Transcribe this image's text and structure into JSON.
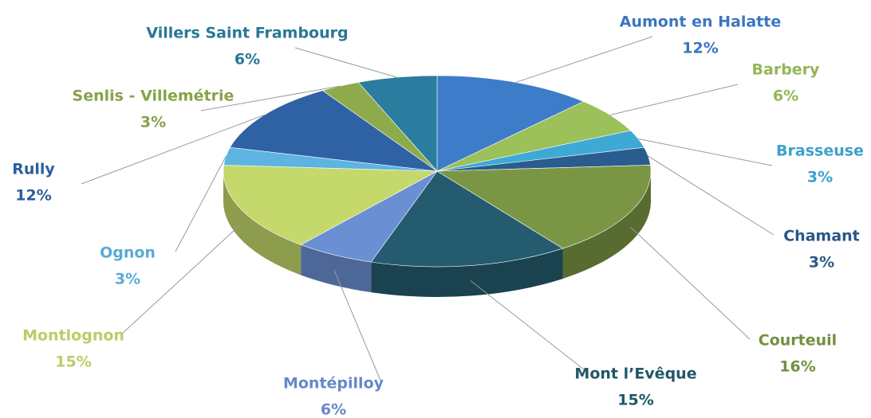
{
  "chart_data": {
    "type": "pie",
    "categories": [
      "Aumont en Halatte",
      "Barbery",
      "Brasseuse",
      "Chamant",
      "Courteuil",
      "Mont l’Evêque",
      "Montépilloy",
      "Montlognon",
      "Ognon",
      "Rully",
      "Senlis - Villemétrie",
      "Villers Saint Frambourg"
    ],
    "values": [
      12,
      6,
      3,
      3,
      16,
      15,
      6,
      15,
      3,
      12,
      3,
      6
    ],
    "value_labels": [
      "12%",
      "6%",
      "3%",
      "3%",
      "16%",
      "15%",
      "6%",
      "15%",
      "3%",
      "12%",
      "3%",
      "6%"
    ],
    "colors": [
      "#3d7cc9",
      "#9cc05a",
      "#3fa9d6",
      "#2b5c8f",
      "#7a9644",
      "#245b6e",
      "#6b8fd3",
      "#c5d86c",
      "#5db4e0",
      "#2f62a4",
      "#8eab4c",
      "#2a7d9e"
    ]
  }
}
